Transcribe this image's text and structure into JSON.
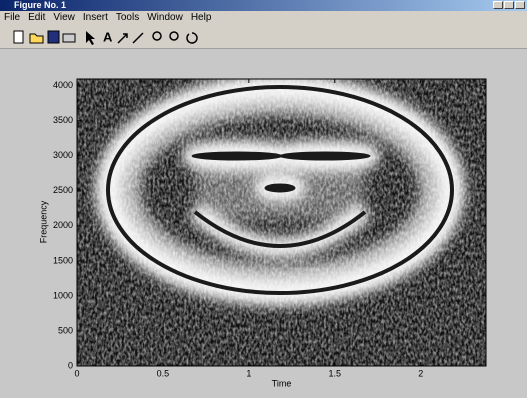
{
  "window": {
    "title": "Figure No. 1",
    "menu": [
      "File",
      "Edit",
      "View",
      "Insert",
      "Tools",
      "Window",
      "Help"
    ]
  },
  "chart_data": {
    "type": "image",
    "xlabel": "Time",
    "ylabel": "Frequency",
    "xlim": [
      0,
      2.38
    ],
    "ylim": [
      0,
      4096
    ],
    "xticks": [
      0,
      0.5,
      1,
      1.5,
      2
    ],
    "yticks": [
      0,
      500,
      1000,
      1500,
      2000,
      2500,
      3000,
      3500,
      4000
    ]
  }
}
